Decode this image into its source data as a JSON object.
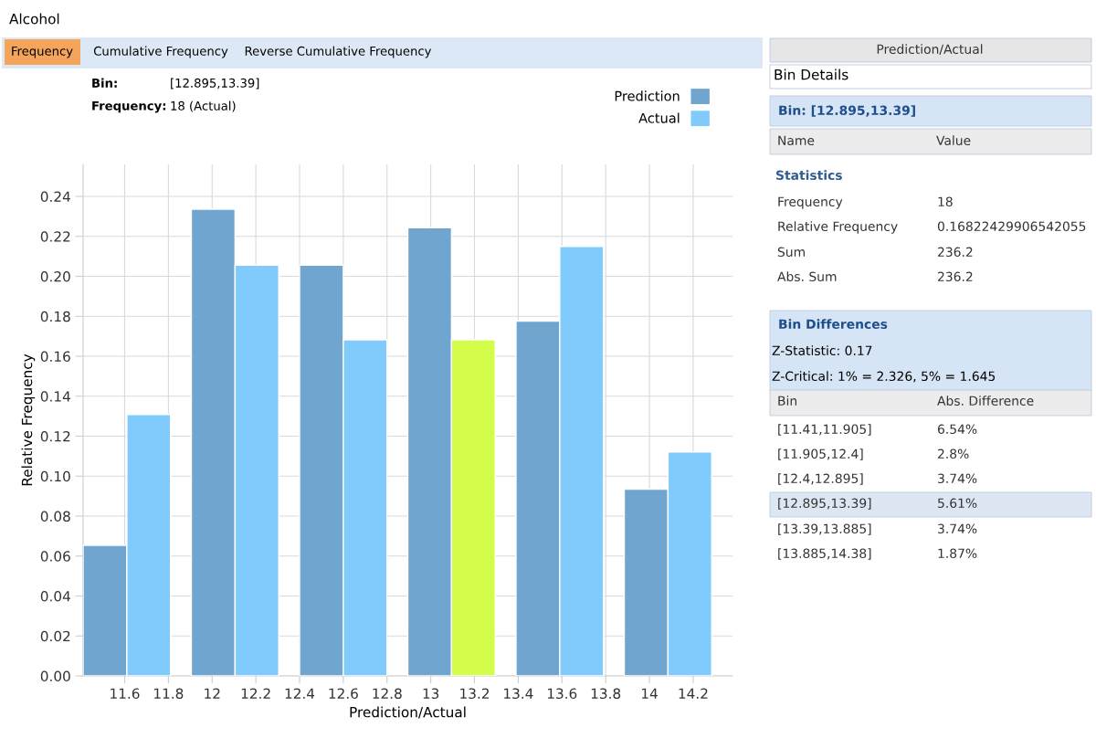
{
  "chart_data": [
    {
      "type": "histogram",
      "title": "Alcohol",
      "xlabel": "Prediction/Actual",
      "ylabel": "Relative Frequency",
      "bins": [
        11.41,
        11.905,
        12.4,
        12.895,
        13.39,
        13.885,
        14.38
      ],
      "series": [
        {
          "name": "Prediction",
          "color": "#6fa5cf",
          "values": [
            0.0654,
            0.2336,
            0.2056,
            0.2243,
            0.1776,
            0.0935
          ]
        },
        {
          "name": "Actual",
          "color": "#80cbfc",
          "colors": [
            "#80cbfc",
            "#80cbfc",
            "#80cbfc",
            "#d4fc4a",
            "#80cbfc",
            "#80cbfc"
          ],
          "values": [
            0.1308,
            0.2056,
            0.1682,
            0.1682,
            0.215,
            0.1121
          ]
        }
      ],
      "xlim": [
        11.41,
        14.38
      ],
      "xticks": [
        11.6,
        11.8,
        12,
        12.2,
        12.4,
        12.6,
        12.8,
        13,
        13.2,
        13.4,
        13.6,
        13.8,
        14,
        14.2
      ],
      "ylim": [
        0,
        0.256
      ],
      "yticks": [
        {
          "value": 0,
          "label": "0.00"
        },
        0.02,
        0.04,
        0.06,
        0.08,
        {
          "value": 0.1,
          "label": "0.10"
        },
        0.12,
        0.14,
        0.16,
        0.18,
        {
          "value": 0.2,
          "label": "0.20"
        },
        0.22,
        0.24
      ],
      "grid": true,
      "legend": "top right",
      "annotations": [
        "Frequency",
        "Cumulative Frequency",
        "Reverse Cumulative Frequency",
        "Bin:",
        "[12.895,13.39]",
        "Frequency:",
        "18 (Actual)"
      ]
    },
    {
      "type": "other",
      "annotations": [
        "Prediction/Actual",
        "Bin Details",
        "Bin: [12.895,13.39]",
        "Name",
        "Value",
        "Statistics",
        "Frequency",
        "18",
        "Relative Frequency",
        "0.16822429906542055",
        "Sum",
        "236.2",
        "Abs. Sum",
        "236.2",
        "Bin Differences",
        "Z-Statistic: 0.17",
        "Z-Critical: 1% = 2.326, 5% = 1.645",
        "Bin",
        "Abs. Difference",
        "[11.41,11.905]",
        "6.54%",
        "[11.905,12.4]",
        "2.8%",
        "[12.4,12.895]",
        "3.74%",
        "[12.895,13.39]",
        "5.61%",
        "[13.39,13.885]",
        "3.74%",
        "[13.885,14.38]",
        "1.87%"
      ]
    }
  ]
}
